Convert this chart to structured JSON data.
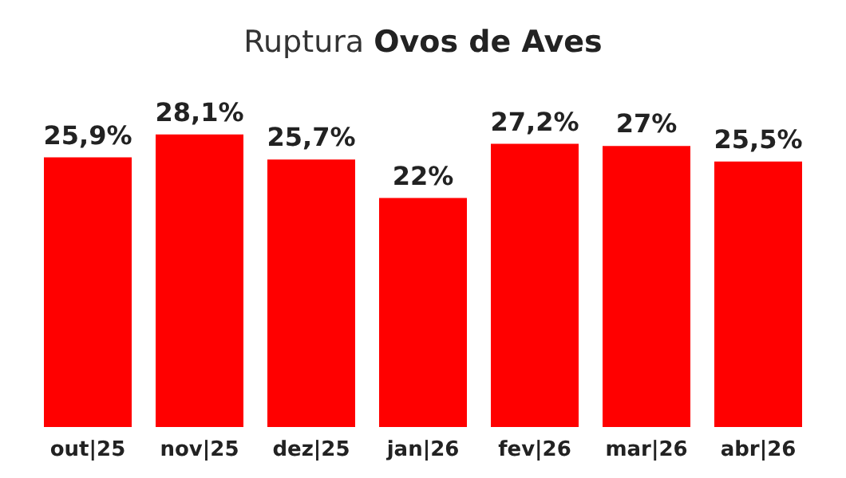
{
  "chart_data": {
    "type": "bar",
    "title": "Ruptura Ovos de Aves",
    "categories": [
      "out|25",
      "nov|25",
      "dez|25",
      "jan|26",
      "fev|26",
      "mar|26",
      "abr|26"
    ],
    "values": [
      25.9,
      28.1,
      25.7,
      22,
      27.2,
      27,
      25.5
    ],
    "value_labels": [
      "25,9%",
      "28,1%",
      "25,7%",
      "22%",
      "27,2%",
      "27%",
      "25,5%"
    ],
    "color": "#ff0000",
    "tick_labels": "x"
  }
}
